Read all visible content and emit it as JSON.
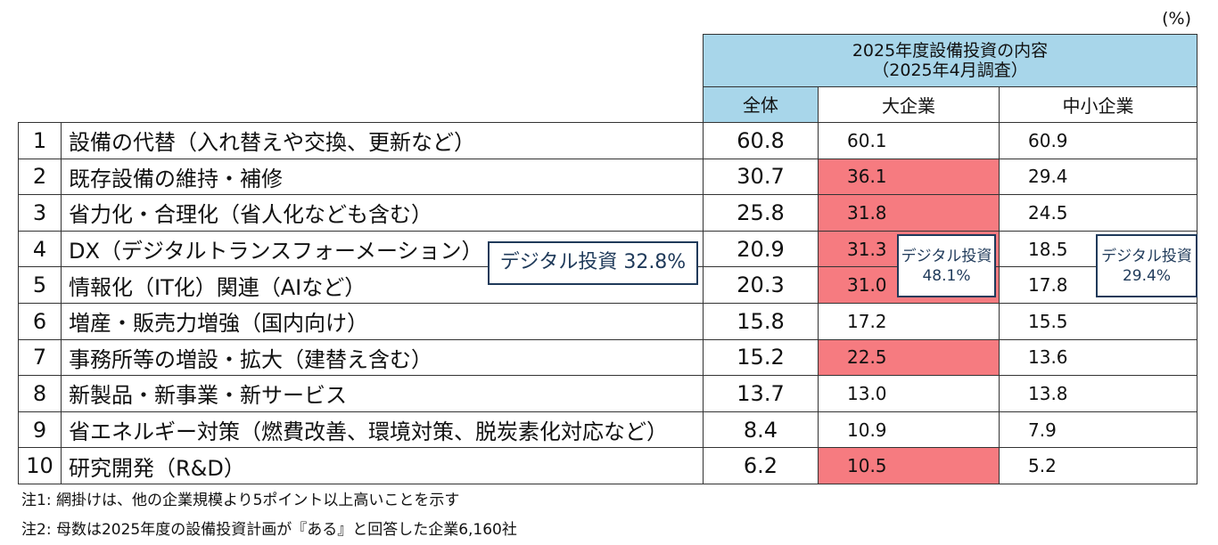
{
  "unit": "(%)",
  "header": {
    "group_title_line1": "2025年度設備投資の内容",
    "group_title_line2": "（2025年4月調査）",
    "col_all": "全体",
    "col_large": "大企業",
    "col_sme": "中小企業"
  },
  "rows": [
    {
      "rank": "1",
      "label": "設備の代替（入れ替えや交換、更新など）",
      "all": "60.8",
      "large": "60.1",
      "sme": "60.9",
      "large_highlight": false
    },
    {
      "rank": "2",
      "label": "既存設備の維持・補修",
      "all": "30.7",
      "large": "36.1",
      "sme": "29.4",
      "large_highlight": true
    },
    {
      "rank": "3",
      "label": "省力化・合理化（省人化なども含む）",
      "all": "25.8",
      "large": "31.8",
      "sme": "24.5",
      "large_highlight": true
    },
    {
      "rank": "4",
      "label": "DX（デジタルトランスフォーメーション）",
      "all": "20.9",
      "large": "31.3",
      "sme": "18.5",
      "large_highlight": true
    },
    {
      "rank": "5",
      "label": "情報化（IT化）関連（AIなど）",
      "all": "20.3",
      "large": "31.0",
      "sme": "17.8",
      "large_highlight": true
    },
    {
      "rank": "6",
      "label": "増産・販売力増強（国内向け）",
      "all": "15.8",
      "large": "17.2",
      "sme": "15.5",
      "large_highlight": false
    },
    {
      "rank": "7",
      "label": "事務所等の増設・拡大（建替え含む）",
      "all": "15.2",
      "large": "22.5",
      "sme": "13.6",
      "large_highlight": true
    },
    {
      "rank": "8",
      "label": "新製品・新事業・新サービス",
      "all": "13.7",
      "large": "13.0",
      "sme": "13.8",
      "large_highlight": false
    },
    {
      "rank": "9",
      "label": "省エネルギー対策（燃費改善、環境対策、脱炭素化対応など）",
      "all": "8.4",
      "large": "10.9",
      "sme": "7.9",
      "large_highlight": false
    },
    {
      "rank": "10",
      "label": "研究開発（R&D）",
      "all": "6.2",
      "large": "10.5",
      "sme": "5.2",
      "large_highlight": true
    }
  ],
  "callouts": {
    "all": "デジタル投資 32.8%",
    "large_line1": "デジタル投資",
    "large_line2": "48.1%",
    "sme_line1": "デジタル投資",
    "sme_line2": "29.4%"
  },
  "notes": {
    "note1": "注1:  網掛けは、他の企業規模より5ポイント以上高いことを示す",
    "note2": "注2:  母数は2025年度の設備投資計画が『ある』と回答した企業6,160社"
  },
  "colors": {
    "header_blue": "#a8d6ea",
    "highlight_red": "#f67b80",
    "callout_border": "#1f3a5a"
  }
}
